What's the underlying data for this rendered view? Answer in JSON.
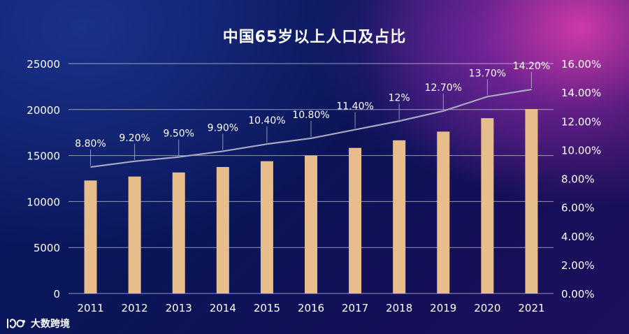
{
  "chart_data": {
    "type": "bar+line",
    "title": "中国65岁以上人口及占比",
    "categories": [
      "2011",
      "2012",
      "2013",
      "2014",
      "2015",
      "2016",
      "2017",
      "2018",
      "2019",
      "2020",
      "2021"
    ],
    "series": [
      {
        "type": "bar",
        "axis": "left",
        "color": "#e7bd8b",
        "values": [
          12288,
          12714,
          13161,
          13755,
          14386,
          15003,
          15831,
          16658,
          17603,
          19064,
          20056
        ]
      },
      {
        "type": "line",
        "axis": "right",
        "color": "#a8a8c0",
        "values": [
          8.8,
          9.2,
          9.5,
          9.9,
          10.4,
          10.8,
          11.4,
          12.0,
          12.7,
          13.7,
          14.2
        ],
        "labels": [
          "8.80%",
          "9.20%",
          "9.50%",
          "9.90%",
          "10.40%",
          "10.80%",
          "11.40%",
          "12%",
          "12.70%",
          "13.70%",
          "14.20%"
        ]
      }
    ],
    "y_left": {
      "min": 0,
      "max": 25000,
      "ticks": [
        "0",
        "5000",
        "10000",
        "15000",
        "20000",
        "25000"
      ]
    },
    "y_right": {
      "min": 0,
      "max": 16,
      "ticks": [
        "0.00%",
        "2.00%",
        "4.00%",
        "6.00%",
        "8.00%",
        "10.00%",
        "12.00%",
        "14.00%",
        "16.00%"
      ]
    },
    "grid": "horizontal",
    "legend": "none"
  },
  "brand": {
    "name": "大数跨境"
  }
}
